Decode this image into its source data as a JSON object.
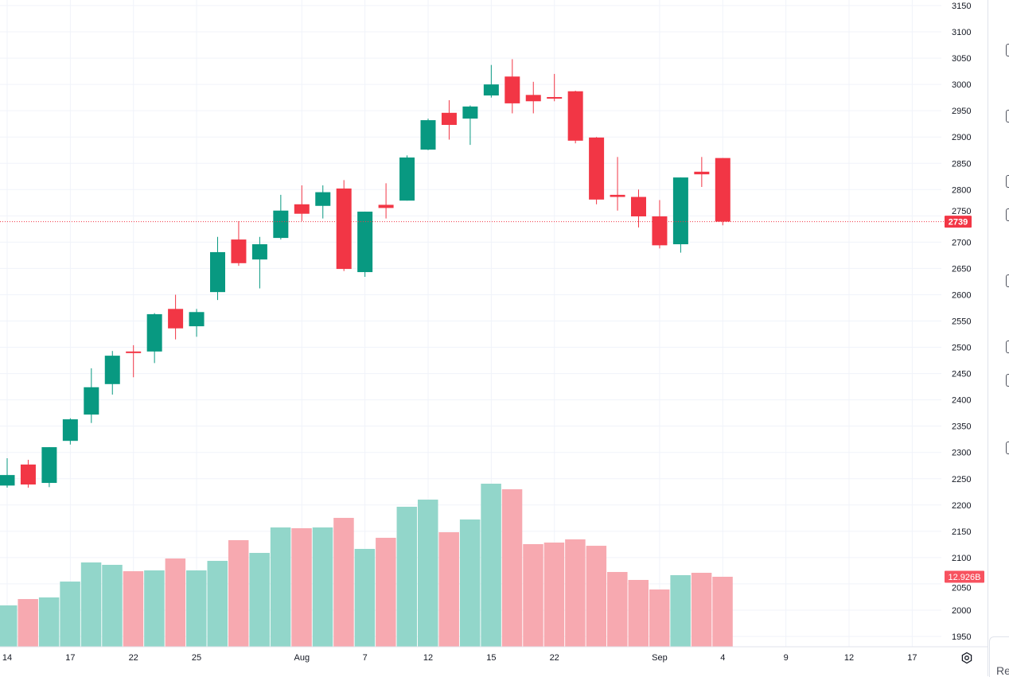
{
  "chart_data": {
    "type": "candlestick",
    "title": "",
    "y_ticks": [
      3150,
      3100,
      3050,
      3000,
      2950,
      2900,
      2850,
      2800,
      2750,
      2700,
      2650,
      2600,
      2550,
      2500,
      2450,
      2400,
      2350,
      2300,
      2250,
      2200,
      2150,
      2100,
      2050,
      2000,
      1950
    ],
    "ylim": [
      1950,
      3150
    ],
    "x_labels": [
      {
        "bar": 0,
        "label": "14"
      },
      {
        "bar": 3,
        "label": "17"
      },
      {
        "bar": 6,
        "label": "22"
      },
      {
        "bar": 9,
        "label": "25"
      },
      {
        "bar": 14,
        "label": "Aug"
      },
      {
        "bar": 17,
        "label": "7"
      },
      {
        "bar": 20,
        "label": "12"
      },
      {
        "bar": 23,
        "label": "15"
      },
      {
        "bar": 26,
        "label": "22"
      },
      {
        "bar": 31,
        "label": "Sep"
      },
      {
        "bar": 34,
        "label": "4"
      },
      {
        "bar": 37,
        "label": "9"
      },
      {
        "bar": 40,
        "label": "12"
      },
      {
        "bar": 43,
        "label": "17"
      }
    ],
    "ohlc": [
      [
        2237,
        2289,
        2233,
        2257
      ],
      [
        2277,
        2286,
        2233,
        2239
      ],
      [
        2242,
        2310,
        2234,
        2310
      ],
      [
        2322,
        2365,
        2315,
        2363
      ],
      [
        2372,
        2460,
        2356,
        2424
      ],
      [
        2430,
        2493,
        2410,
        2484
      ],
      [
        2492,
        2504,
        2443,
        2489
      ],
      [
        2492,
        2565,
        2470,
        2563
      ],
      [
        2573,
        2600,
        2515,
        2536
      ],
      [
        2540,
        2573,
        2520,
        2567
      ],
      [
        2605,
        2710,
        2590,
        2681
      ],
      [
        2705,
        2740,
        2655,
        2660
      ],
      [
        2667,
        2710,
        2612,
        2696
      ],
      [
        2708,
        2790,
        2705,
        2760
      ],
      [
        2772,
        2808,
        2740,
        2754
      ],
      [
        2769,
        2808,
        2745,
        2795
      ],
      [
        2802,
        2818,
        2645,
        2649
      ],
      [
        2643,
        2758,
        2634,
        2758
      ],
      [
        2771,
        2812,
        2745,
        2765
      ],
      [
        2779,
        2865,
        2779,
        2861
      ],
      [
        2876,
        2935,
        2875,
        2932
      ],
      [
        2946,
        2970,
        2895,
        2923
      ],
      [
        2935,
        2960,
        2885,
        2958
      ],
      [
        2979,
        3037,
        2975,
        3000
      ],
      [
        3015,
        3048,
        2945,
        2964
      ],
      [
        2980,
        3005,
        2945,
        2968
      ],
      [
        2976,
        3020,
        2968,
        2974
      ],
      [
        2987,
        2988,
        2888,
        2893
      ],
      [
        2899,
        2900,
        2772,
        2781
      ],
      [
        2790,
        2862,
        2760,
        2786
      ],
      [
        2786,
        2800,
        2728,
        2749
      ],
      [
        2749,
        2780,
        2688,
        2694
      ],
      [
        2696,
        2823,
        2680,
        2823
      ],
      [
        2834,
        2862,
        2805,
        2829
      ],
      [
        2860,
        2860,
        2732,
        2739
      ]
    ],
    "volume_billions": [
      7.64,
      8.81,
      9.11,
      12.04,
      15.57,
      15.13,
      13.95,
      14.1,
      16.3,
      14.1,
      15.86,
      19.68,
      17.33,
      22.03,
      21.89,
      22.03,
      23.8,
      18.07,
      20.12,
      25.85,
      27.17,
      21.15,
      23.5,
      30.11,
      29.08,
      18.95,
      19.24,
      19.83,
      18.65,
      13.81,
      12.34,
      10.58,
      13.22,
      13.66,
      12.926
    ],
    "last_price_label": "2739",
    "last_volume_label": "12.926B",
    "colors": {
      "up": "#089981",
      "down": "#f23645",
      "vol_up": "#92d6ca",
      "vol_down": "#f7a9b0",
      "grid": "#f0f3fa"
    }
  },
  "sidebar": {
    "bottom_text": "Re"
  }
}
